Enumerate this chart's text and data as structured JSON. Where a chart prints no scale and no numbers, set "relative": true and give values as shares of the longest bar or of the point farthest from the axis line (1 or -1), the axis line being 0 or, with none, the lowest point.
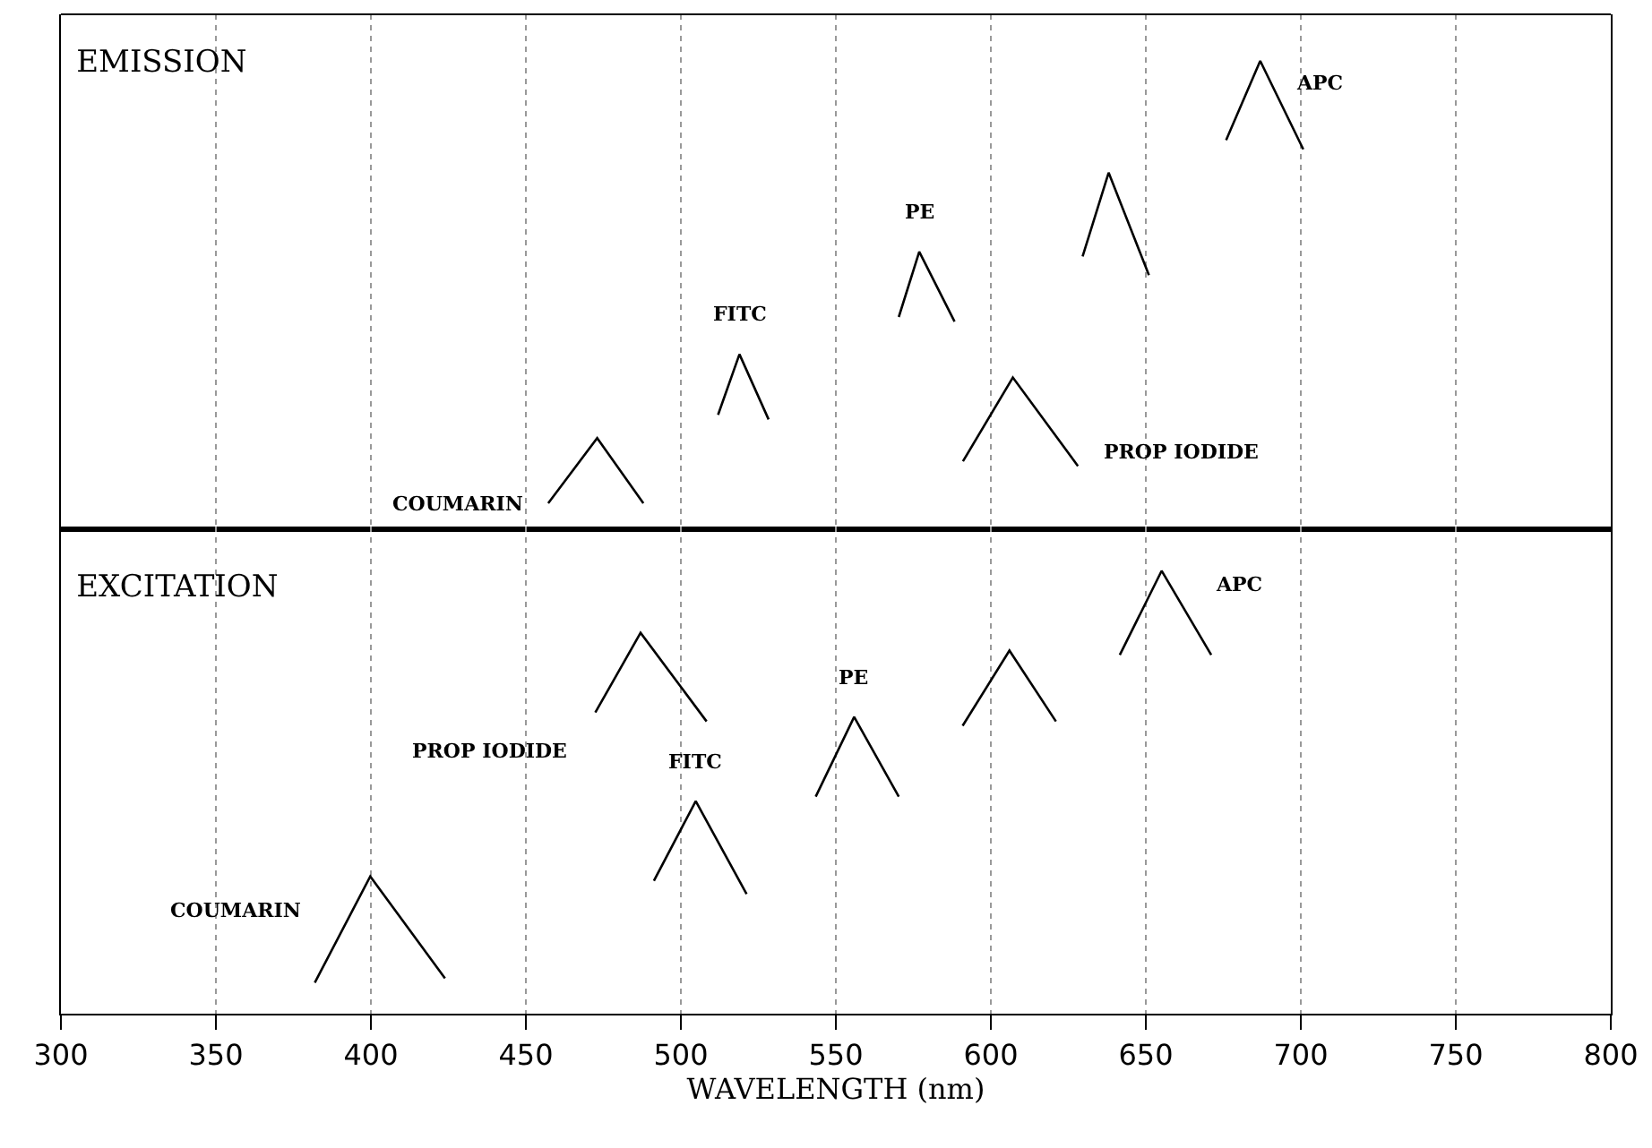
{
  "chart_data": [
    {
      "type": "line",
      "title": "EMISSION",
      "relative": true,
      "xlim": [
        300,
        800
      ],
      "xticks": [
        300,
        350,
        400,
        450,
        500,
        550,
        600,
        650,
        700,
        750,
        800
      ],
      "tick_labels": false,
      "grid": "x",
      "legend": false,
      "marker": "none",
      "line_style": "solid",
      "series": [
        {
          "name": "COUMARIN",
          "color": "#000000",
          "x": [
            457.2,
            473,
            487.9
          ],
          "values": [
            0.05,
            0.19,
            0.05
          ]
        },
        {
          "name": "FITC",
          "color": "#000000",
          "x": [
            512,
            518.9,
            528.3
          ],
          "values": [
            0.24,
            0.37,
            0.23
          ]
        },
        {
          "name": "PE",
          "color": "#000000",
          "x": [
            570.3,
            576.9,
            588.3
          ],
          "values": [
            0.45,
            0.59,
            0.44
          ]
        },
        {
          "name": "PROP IODIDE",
          "color": "#000000",
          "x": [
            591,
            607.1,
            628.1
          ],
          "values": [
            0.14,
            0.32,
            0.13
          ]
        },
        {
          "color": "#000000",
          "x": [
            629.6,
            638,
            651
          ],
          "values": [
            0.58,
            0.76,
            0.54
          ]
        },
        {
          "name": "APC",
          "color": "#000000",
          "x": [
            675.9,
            686.9,
            700.8
          ],
          "values": [
            0.83,
            1,
            0.81
          ]
        }
      ]
    },
    {
      "type": "line",
      "title": "EXCITATION",
      "relative": true,
      "xlabel": "WAVELENGTH (nm)",
      "xlim": [
        300,
        800
      ],
      "xticks": [
        300,
        350,
        400,
        450,
        500,
        550,
        600,
        650,
        700,
        750,
        800
      ],
      "grid": "x",
      "legend": false,
      "marker": "none",
      "line_style": "solid",
      "series": [
        {
          "name": "PROP IODIDE",
          "color": "#000000",
          "x": [
            472.4,
            487,
            508.3
          ],
          "values": [
            0.68,
            0.86,
            0.66
          ]
        },
        {
          "name": "FITC",
          "color": "#000000",
          "x": [
            491.3,
            504.8,
            521.2
          ],
          "values": [
            0.3,
            0.48,
            0.27
          ]
        },
        {
          "name": "PE",
          "color": "#000000",
          "x": [
            543.5,
            555.9,
            570.3
          ],
          "values": [
            0.49,
            0.67,
            0.49
          ]
        },
        {
          "name": "COUMARIN",
          "color": "#000000",
          "x": [
            381.9,
            399.8,
            423.9
          ],
          "values": [
            0.07,
            0.31,
            0.08
          ]
        },
        {
          "color": "#000000",
          "x": [
            590.9,
            606,
            621
          ],
          "values": [
            0.65,
            0.82,
            0.66
          ]
        },
        {
          "name": "APC",
          "color": "#000000",
          "x": [
            641.6,
            655.1,
            671.1
          ],
          "values": [
            0.81,
            1,
            0.81
          ]
        }
      ]
    }
  ]
}
